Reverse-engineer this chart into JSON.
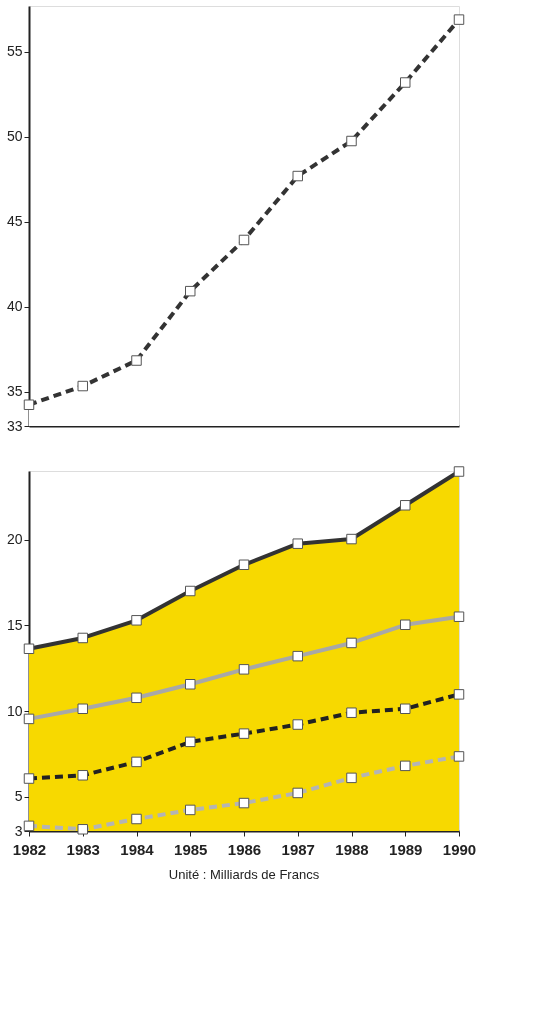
{
  "chart_data": [
    {
      "type": "area",
      "categories": [
        "1982",
        "1983",
        "1984",
        "1985",
        "1986",
        "1987",
        "1988",
        "1989",
        "1990"
      ],
      "ylim": [
        33,
        57.7
      ],
      "yticks": [
        33,
        35,
        40,
        45,
        50,
        55
      ],
      "tick_labels": "y",
      "marker": "square",
      "series": [
        {
          "color": "#ffffff",
          "line_style": "dashed",
          "values": [
            34.25,
            35.35,
            36.85,
            40.93,
            43.94,
            47.7,
            49.76,
            53.2,
            56.9
          ]
        }
      ]
    },
    {
      "type": "line",
      "categories": [
        "1982",
        "1983",
        "1984",
        "1985",
        "1986",
        "1987",
        "1988",
        "1989",
        "1990"
      ],
      "ylim": [
        3,
        24
      ],
      "yticks": [
        3,
        5,
        10,
        15,
        20
      ],
      "marker": "square",
      "annotations": [
        "Unité : Milliards de Francs"
      ],
      "series": [
        {
          "type": "area",
          "color": "#f7d900",
          "line_style": "solid",
          "values": [
            13.63,
            14.26,
            15.29,
            17.0,
            18.53,
            19.76,
            20.03,
            22.0,
            23.97
          ]
        },
        {
          "color": "#a8a8a8",
          "line_style": "solid",
          "values": [
            9.54,
            10.13,
            10.77,
            11.56,
            12.43,
            13.2,
            13.97,
            15.03,
            15.5
          ]
        },
        {
          "color": "#222222",
          "line_style": "dashed",
          "values": [
            6.06,
            6.25,
            7.03,
            8.2,
            8.68,
            9.21,
            9.9,
            10.13,
            10.97
          ]
        },
        {
          "color": "#b4b4b4",
          "line_style": "dashed",
          "values": [
            3.3,
            3.1,
            3.7,
            4.23,
            4.63,
            5.22,
            6.1,
            6.8,
            7.35
          ]
        }
      ]
    }
  ]
}
